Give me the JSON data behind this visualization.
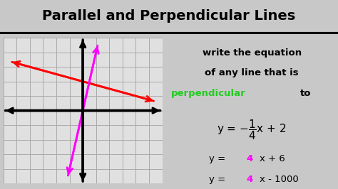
{
  "title": "Parallel and Perpendicular Lines",
  "bg_color": "#f0f0f0",
  "title_bg": "#ffffff",
  "title_color": "#000000",
  "title_fontsize": 14,
  "graph_xlim": [
    -6,
    6
  ],
  "graph_ylim": [
    -5,
    5
  ],
  "graph_bg": "#e8e8e8",
  "red_line_slope": -0.25,
  "red_line_intercept": 2,
  "magenta_line_slope": 4,
  "magenta_line_intercept": 0,
  "green_color": "#22cc22",
  "magenta_color": "#ff00ff"
}
